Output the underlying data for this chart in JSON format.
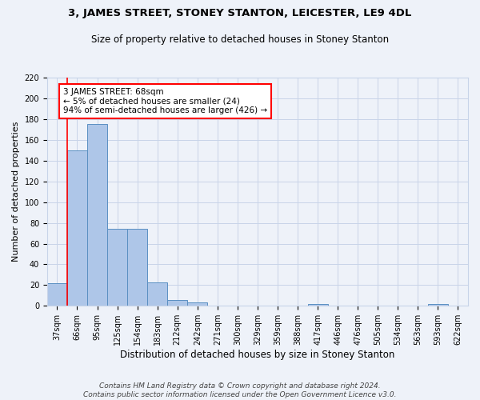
{
  "title1": "3, JAMES STREET, STONEY STANTON, LEICESTER, LE9 4DL",
  "title2": "Size of property relative to detached houses in Stoney Stanton",
  "xlabel": "Distribution of detached houses by size in Stoney Stanton",
  "ylabel": "Number of detached properties",
  "categories": [
    "37sqm",
    "66sqm",
    "95sqm",
    "125sqm",
    "154sqm",
    "183sqm",
    "212sqm",
    "242sqm",
    "271sqm",
    "300sqm",
    "329sqm",
    "359sqm",
    "388sqm",
    "417sqm",
    "446sqm",
    "476sqm",
    "505sqm",
    "534sqm",
    "563sqm",
    "593sqm",
    "622sqm"
  ],
  "values": [
    22,
    150,
    175,
    74,
    74,
    23,
    6,
    3,
    0,
    0,
    0,
    0,
    0,
    2,
    0,
    0,
    0,
    0,
    0,
    2,
    0
  ],
  "bar_color": "#aec6e8",
  "bar_edge_color": "#5a8fc2",
  "red_line_index": 1,
  "annotation_text": "3 JAMES STREET: 68sqm\n← 5% of detached houses are smaller (24)\n94% of semi-detached houses are larger (426) →",
  "annotation_box_color": "white",
  "annotation_box_edge": "red",
  "ylim": [
    0,
    220
  ],
  "yticks": [
    0,
    20,
    40,
    60,
    80,
    100,
    120,
    140,
    160,
    180,
    200,
    220
  ],
  "footer": "Contains HM Land Registry data © Crown copyright and database right 2024.\nContains public sector information licensed under the Open Government Licence v3.0.",
  "bg_color": "#eef2f9",
  "grid_color": "#c8d4e8",
  "title1_fontsize": 9.5,
  "title2_fontsize": 8.5,
  "ylabel_fontsize": 8,
  "xlabel_fontsize": 8.5,
  "tick_fontsize": 7,
  "annotation_fontsize": 7.5,
  "footer_fontsize": 6.5
}
